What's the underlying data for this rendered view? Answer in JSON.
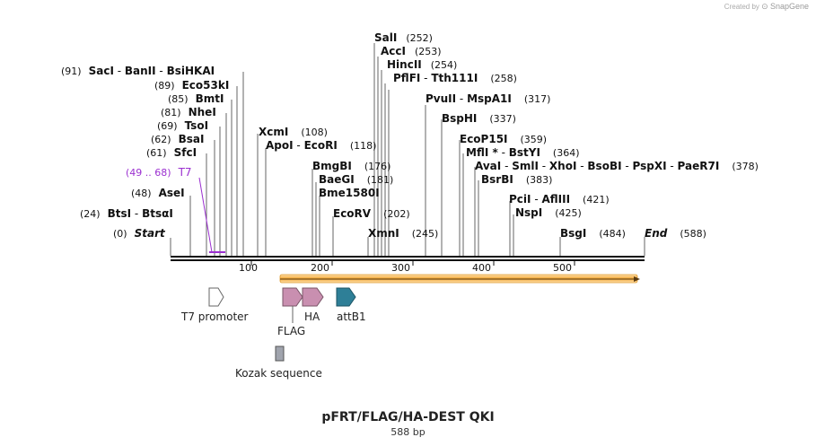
{
  "credit": {
    "prefix": "Created by",
    "brand": "SnapGene"
  },
  "title": "pFRT/FLAG/HA-DEST QKI",
  "length_label": "588 bp",
  "sequence_length": 588,
  "ruler_ticks": [
    "100",
    "200",
    "300",
    "400",
    "500"
  ],
  "enzyme_rows": [
    {
      "pos_text": "(252)",
      "enzymes": [
        {
          "name": "SalI",
          "site": 252
        }
      ]
    },
    {
      "pos_text": "(253)",
      "enzymes": [
        {
          "name": "AccI",
          "site": 253
        }
      ]
    },
    {
      "pos_text": "(254)",
      "enzymes": [
        {
          "name": "HincII",
          "site": 254
        }
      ]
    },
    {
      "pos_text": "(258)",
      "enzymes": [
        {
          "name": "PflFI",
          "site": 258
        },
        {
          "name": "Tth111I",
          "site": 258
        }
      ]
    },
    {
      "pos_text": "(91)",
      "enzymes": [
        {
          "name": "SacI",
          "site": 91
        },
        {
          "name": "BanII",
          "site": 91
        },
        {
          "name": "BsiHKAI",
          "site": 91
        }
      ]
    },
    {
      "pos_text": "(89)",
      "enzymes": [
        {
          "name": "Eco53kI",
          "site": 89
        }
      ]
    },
    {
      "pos_text": "(85)",
      "enzymes": [
        {
          "name": "BmtI",
          "site": 85
        }
      ]
    },
    {
      "pos_text": "(81)",
      "enzymes": [
        {
          "name": "NheI",
          "site": 81
        }
      ]
    },
    {
      "pos_text": "(69)",
      "enzymes": [
        {
          "name": "TsoI",
          "site": 69
        }
      ]
    },
    {
      "pos_text": "(62)",
      "enzymes": [
        {
          "name": "BsaI",
          "site": 62
        }
      ]
    },
    {
      "pos_text": "(61)",
      "enzymes": [
        {
          "name": "SfcI",
          "site": 61
        }
      ]
    },
    {
      "pos_text": "(48)",
      "enzymes": [
        {
          "name": "AseI",
          "site": 48
        }
      ]
    },
    {
      "pos_text": "(24)",
      "enzymes": [
        {
          "name": "BtsI",
          "site": 24
        },
        {
          "name": "BtsαI",
          "site": 24
        }
      ]
    },
    {
      "pos_text": "(108)",
      "enzymes": [
        {
          "name": "XcmI",
          "site": 108
        }
      ]
    },
    {
      "pos_text": "(118)",
      "enzymes": [
        {
          "name": "ApoI",
          "site": 118
        },
        {
          "name": "EcoRI",
          "site": 118
        }
      ]
    },
    {
      "pos_text": "(176)",
      "enzymes": [
        {
          "name": "BmgBI",
          "site": 176
        }
      ]
    },
    {
      "pos_text": "(181)",
      "enzymes": [
        {
          "name": "BaeGI",
          "site": 181
        }
      ]
    },
    {
      "pos_text": "",
      "enzymes": [
        {
          "name": "Bme1580I",
          "site": 181
        }
      ]
    },
    {
      "pos_text": "(202)",
      "enzymes": [
        {
          "name": "EcoRV",
          "site": 202
        }
      ]
    },
    {
      "pos_text": "(245)",
      "enzymes": [
        {
          "name": "XmnI",
          "site": 245
        }
      ]
    },
    {
      "pos_text": "(317)",
      "enzymes": [
        {
          "name": "PvuII",
          "site": 317
        },
        {
          "name": "MspA1I",
          "site": 317
        }
      ]
    },
    {
      "pos_text": "(337)",
      "enzymes": [
        {
          "name": "BspHI",
          "site": 337
        }
      ]
    },
    {
      "pos_text": "(359)",
      "enzymes": [
        {
          "name": "EcoP15I",
          "site": 359
        }
      ]
    },
    {
      "pos_text": "(364)",
      "enzymes": [
        {
          "name": "MflI *",
          "site": 364
        },
        {
          "name": "BstYI",
          "site": 364
        }
      ]
    },
    {
      "pos_text": "(378)",
      "enzymes": [
        {
          "name": "AvaI",
          "site": 378
        },
        {
          "name": "SmlI",
          "site": 378
        },
        {
          "name": "XhoI",
          "site": 378
        },
        {
          "name": "BsoBI",
          "site": 378
        },
        {
          "name": "PspXI",
          "site": 378
        },
        {
          "name": "PaeR7I",
          "site": 378
        }
      ]
    },
    {
      "pos_text": "(383)",
      "enzymes": [
        {
          "name": "BsrBI",
          "site": 383
        }
      ]
    },
    {
      "pos_text": "(421)",
      "enzymes": [
        {
          "name": "PciI",
          "site": 421
        },
        {
          "name": "AflIII",
          "site": 421
        }
      ]
    },
    {
      "pos_text": "(425)",
      "enzymes": [
        {
          "name": "NspI",
          "site": 425
        }
      ]
    },
    {
      "pos_text": "(484)",
      "enzymes": [
        {
          "name": "BsgI",
          "site": 484
        }
      ]
    }
  ],
  "ends": [
    {
      "label": "Start",
      "pos_text": "(0)",
      "site": 0
    },
    {
      "label": "End",
      "pos_text": "(588)",
      "site": 588
    }
  ],
  "primer": {
    "label": "T7",
    "pos_text": "(49 .. 68)",
    "start": 49,
    "end": 68,
    "color": "#9b30d0"
  },
  "orf_color": "#f2a531",
  "features": [
    {
      "name": "T7 promoter",
      "color": "#ffffff"
    },
    {
      "name": "FLAG",
      "color": "#c98fb0"
    },
    {
      "name": "HA",
      "color": "#c98fb0"
    },
    {
      "name": "attB1",
      "color": "#2e7f97"
    },
    {
      "name": "Kozak sequence",
      "color": "#a0a4ad"
    }
  ]
}
